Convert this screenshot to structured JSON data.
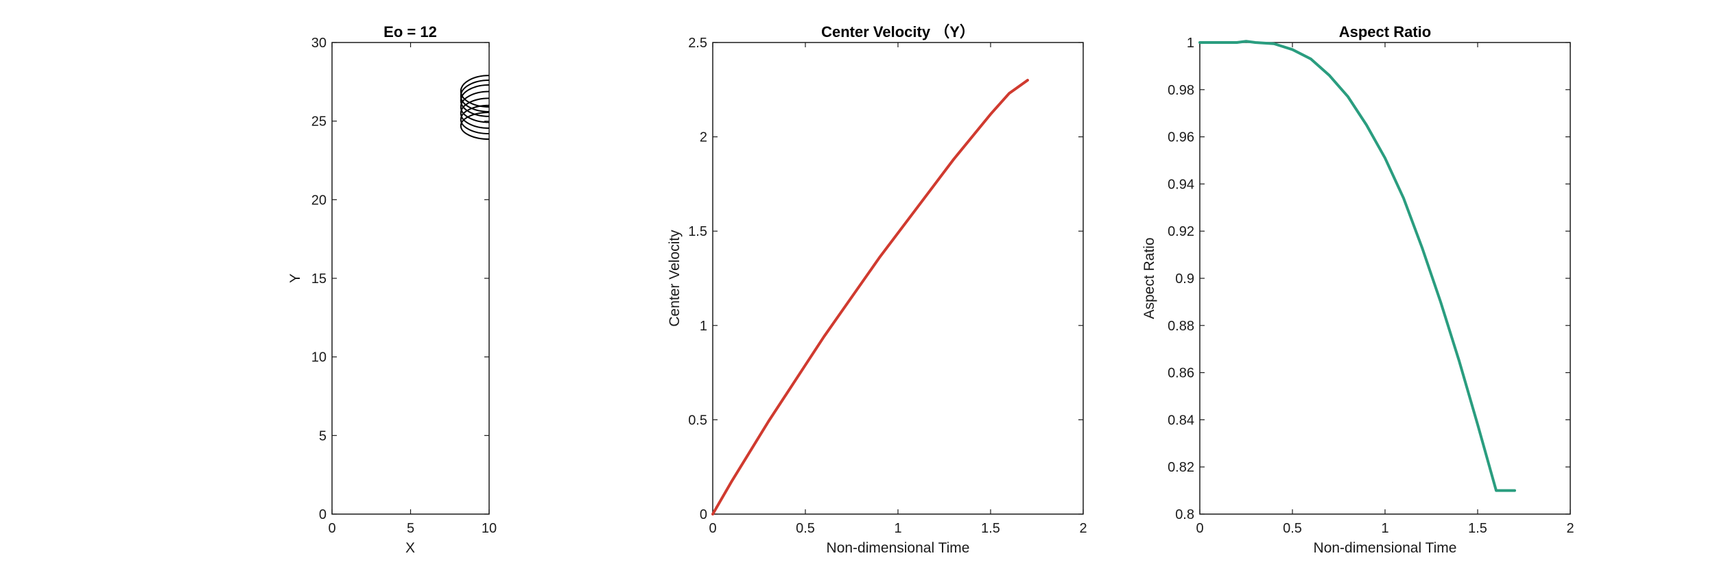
{
  "chart_data": [
    {
      "type": "line",
      "title": "Eo = 12",
      "xlabel": "X",
      "ylabel": "Y",
      "xlim": [
        0,
        10
      ],
      "ylim": [
        0,
        30
      ],
      "xticks": [
        0,
        5,
        10
      ],
      "yticks": [
        0,
        5,
        10,
        15,
        20,
        25,
        30
      ],
      "grid": false,
      "line_color": "#000000",
      "bubble_contours": [
        {
          "center_x": 10,
          "center_y": 24.7,
          "radius_x": 1.0,
          "radius_y": 0.85
        },
        {
          "center_x": 10,
          "center_y": 25.1,
          "radius_x": 1.0,
          "radius_y": 0.9
        },
        {
          "center_x": 10,
          "center_y": 25.5,
          "radius_x": 1.0,
          "radius_y": 0.95
        },
        {
          "center_x": 10,
          "center_y": 25.9,
          "radius_x": 1.0,
          "radius_y": 0.98
        },
        {
          "center_x": 10,
          "center_y": 26.3,
          "radius_x": 1.0,
          "radius_y": 1.0
        },
        {
          "center_x": 10,
          "center_y": 26.6,
          "radius_x": 1.0,
          "radius_y": 1.0
        },
        {
          "center_x": 10,
          "center_y": 26.9,
          "radius_x": 1.0,
          "radius_y": 1.0
        }
      ]
    },
    {
      "type": "line",
      "title": "Center Velocity （Y）",
      "xlabel": "Non-dimensional Time",
      "ylabel": "Center Velocity",
      "xlim": [
        0,
        2
      ],
      "ylim": [
        0,
        2.5
      ],
      "xticks": [
        "0",
        "0.5",
        "1",
        "1.5",
        "2"
      ],
      "yticks": [
        "0",
        "0.5",
        "1",
        "1.5",
        "2",
        "2.5"
      ],
      "grid": false,
      "series": [
        {
          "color": "#d03a2f",
          "x": [
            0,
            0.1,
            0.2,
            0.3,
            0.4,
            0.5,
            0.6,
            0.7,
            0.8,
            0.9,
            1.0,
            1.1,
            1.2,
            1.3,
            1.4,
            1.5,
            1.6,
            1.7
          ],
          "y": [
            0,
            0.17,
            0.33,
            0.49,
            0.64,
            0.79,
            0.94,
            1.08,
            1.22,
            1.36,
            1.49,
            1.62,
            1.75,
            1.88,
            2.0,
            2.12,
            2.23,
            2.3
          ]
        }
      ]
    },
    {
      "type": "line",
      "title": "Aspect Ratio",
      "xlabel": "Non-dimensional Time",
      "ylabel": "Aspect Ratio",
      "xlim": [
        0,
        2
      ],
      "ylim": [
        0.8,
        1.0
      ],
      "xticks": [
        "0",
        "0.5",
        "1",
        "1.5",
        "2"
      ],
      "yticks": [
        "0.8",
        "0.82",
        "0.84",
        "0.86",
        "0.88",
        "0.9",
        "0.92",
        "0.94",
        "0.96",
        "0.98",
        "1"
      ],
      "grid": false,
      "series": [
        {
          "color": "#2a9d7f",
          "x": [
            0,
            0.1,
            0.2,
            0.25,
            0.3,
            0.4,
            0.5,
            0.6,
            0.7,
            0.8,
            0.9,
            1.0,
            1.1,
            1.2,
            1.3,
            1.4,
            1.5,
            1.6,
            1.7
          ],
          "y": [
            1.0,
            1.0,
            1.0,
            1.0005,
            1.0,
            0.9995,
            0.997,
            0.993,
            0.986,
            0.977,
            0.965,
            0.951,
            0.934,
            0.913,
            0.89,
            0.865,
            0.838,
            0.81,
            0.81
          ]
        }
      ]
    }
  ]
}
